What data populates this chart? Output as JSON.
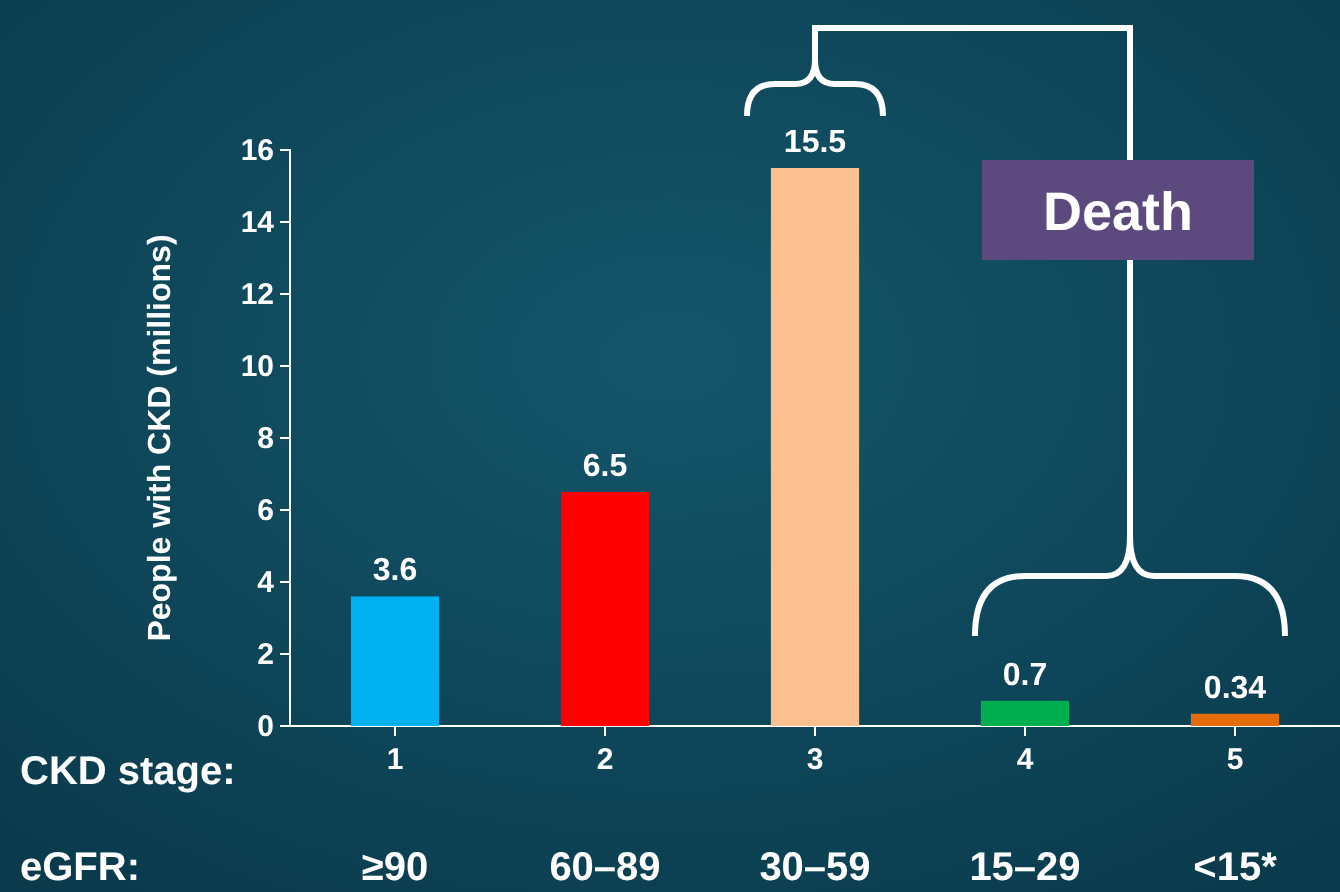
{
  "chart_data": {
    "type": "bar",
    "xlabel": "CKD stage:",
    "ylabel": "People with CKD (millions)",
    "categories": [
      "1",
      "2",
      "3",
      "4",
      "5"
    ],
    "values": [
      3.6,
      6.5,
      15.5,
      0.7,
      0.34
    ],
    "colors": [
      "#00b0f0",
      "#ff0000",
      "#fac090",
      "#00b050",
      "#e46c0a"
    ],
    "ylim": [
      0,
      16
    ],
    "yticks": [
      0,
      2,
      4,
      6,
      8,
      10,
      12,
      14,
      16
    ],
    "data_labels": true,
    "annotations": [
      "eGFR:",
      "≥90",
      "60–89",
      "30–59",
      "15–29",
      "<15*",
      "Death"
    ]
  }
}
